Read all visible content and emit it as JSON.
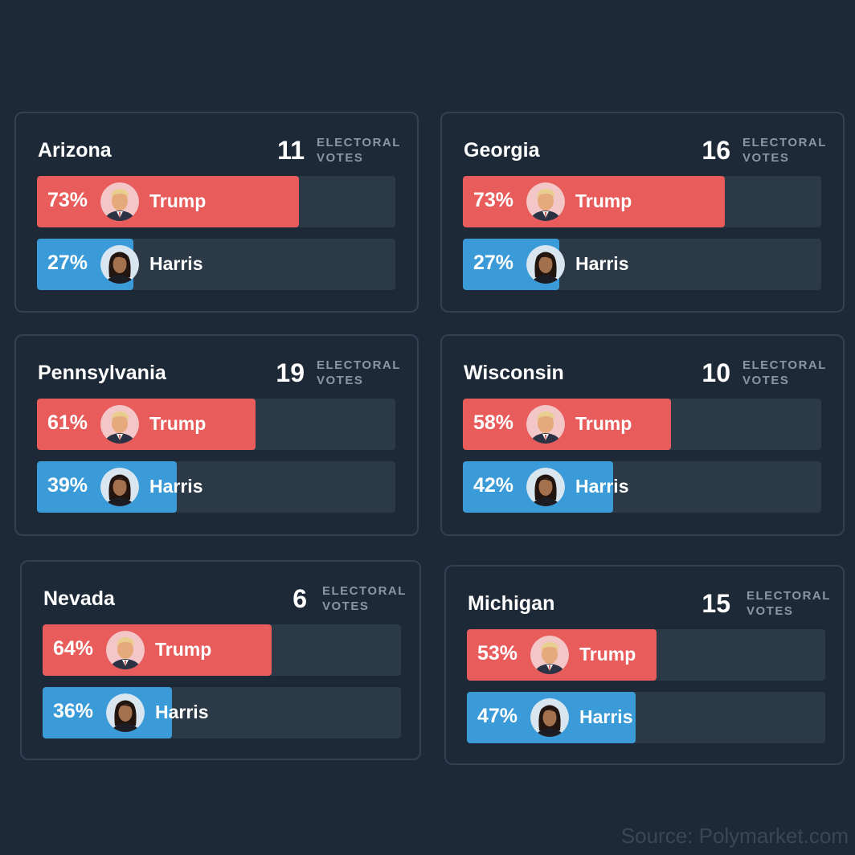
{
  "colors": {
    "background": "#1e2937",
    "card_border": "#324152",
    "track": "#2c3947",
    "trump": "#e85c5c",
    "harris": "#3a9bd8",
    "muted": "#8a96a5",
    "source": "#3a4757"
  },
  "electoral_label": {
    "line1": "ELECTORAL",
    "line2": "VOTES"
  },
  "source": "Source: Polymarket.com",
  "chart_data": [
    {
      "type": "bar",
      "title": "Arizona",
      "electoral_votes": "11",
      "series": [
        {
          "name": "Trump",
          "value": 73,
          "label": "73%"
        },
        {
          "name": "Harris",
          "value": 27,
          "label": "27%"
        }
      ]
    },
    {
      "type": "bar",
      "title": "Georgia",
      "electoral_votes": "16",
      "series": [
        {
          "name": "Trump",
          "value": 73,
          "label": "73%"
        },
        {
          "name": "Harris",
          "value": 27,
          "label": "27%"
        }
      ]
    },
    {
      "type": "bar",
      "title": "Pennsylvania",
      "electoral_votes": "19",
      "series": [
        {
          "name": "Trump",
          "value": 61,
          "label": "61%"
        },
        {
          "name": "Harris",
          "value": 39,
          "label": "39%"
        }
      ]
    },
    {
      "type": "bar",
      "title": "Wisconsin",
      "electoral_votes": "10",
      "series": [
        {
          "name": "Trump",
          "value": 58,
          "label": "58%"
        },
        {
          "name": "Harris",
          "value": 42,
          "label": "42%"
        }
      ]
    },
    {
      "type": "bar",
      "title": "Nevada",
      "electoral_votes": "6",
      "series": [
        {
          "name": "Trump",
          "value": 64,
          "label": "64%"
        },
        {
          "name": "Harris",
          "value": 36,
          "label": "36%"
        }
      ]
    },
    {
      "type": "bar",
      "title": "Michigan",
      "electoral_votes": "15",
      "series": [
        {
          "name": "Trump",
          "value": 53,
          "label": "53%"
        },
        {
          "name": "Harris",
          "value": 47,
          "label": "47%"
        }
      ]
    }
  ]
}
